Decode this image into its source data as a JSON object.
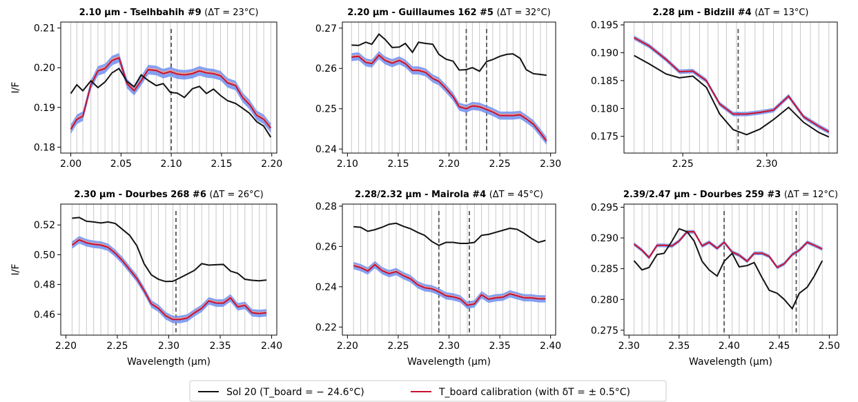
{
  "figure": {
    "xlabel": "Wavelength (µm)",
    "ylabel": "I/F",
    "legend": {
      "placement": "bottom-center",
      "entries": [
        {
          "label": "Sol 20 (T_board = − 24.6°C)",
          "color": "#111111"
        },
        {
          "label": "T_board calibration (with δT = ± 0.5°C)",
          "color": "#c8102e"
        }
      ]
    },
    "colors": {
      "sol": "#111111",
      "calib": "#c8102e",
      "band_low": "#6f8ff0",
      "band_high": "#f0a090",
      "grid": "#c8c8c8",
      "marker": "#555555"
    }
  },
  "chart_data": [
    {
      "type": "line",
      "title": "2.10 µm - Tselhbahih #9",
      "delta": "(ΔT = 23°C)",
      "xlim": [
        1.99,
        2.205
      ],
      "ylim": [
        0.1785,
        0.2115
      ],
      "xticks": [
        2.0,
        2.05,
        2.1,
        2.15,
        2.2
      ],
      "xtick_labels": [
        "2.00",
        "2.05",
        "2.10",
        "2.15",
        "2.20"
      ],
      "yticks": [
        0.18,
        0.19,
        0.2,
        0.21
      ],
      "ytick_labels": [
        "0.18",
        "0.19",
        "0.20",
        "0.21"
      ],
      "gridx": [
        2.0,
        2.006,
        2.012,
        2.02,
        2.027,
        2.034,
        2.041,
        2.048,
        2.056,
        2.063,
        2.07,
        2.077,
        2.085,
        2.092,
        2.099,
        2.106,
        2.113,
        2.121,
        2.128,
        2.135,
        2.142,
        2.149,
        2.156,
        2.164,
        2.171,
        2.178,
        2.185,
        2.192,
        2.199
      ],
      "markers": [
        2.1
      ],
      "show_xlabel": false,
      "show_ylabel": true,
      "x": [
        2.0,
        2.006,
        2.012,
        2.02,
        2.027,
        2.034,
        2.041,
        2.048,
        2.056,
        2.063,
        2.07,
        2.077,
        2.085,
        2.092,
        2.099,
        2.106,
        2.113,
        2.121,
        2.128,
        2.135,
        2.142,
        2.149,
        2.156,
        2.164,
        2.171,
        2.178,
        2.185,
        2.192,
        2.199
      ],
      "sol": [
        0.1935,
        0.1957,
        0.1942,
        0.1967,
        0.195,
        0.1964,
        0.1987,
        0.1998,
        0.1965,
        0.1952,
        0.1982,
        0.1968,
        0.1955,
        0.196,
        0.1938,
        0.1936,
        0.1925,
        0.1947,
        0.1953,
        0.1935,
        0.1946,
        0.193,
        0.1917,
        0.191,
        0.1898,
        0.1885,
        0.1864,
        0.1853,
        0.1825
      ],
      "calib": [
        0.1845,
        0.187,
        0.1878,
        0.1957,
        0.1992,
        0.1998,
        0.2018,
        0.2025,
        0.196,
        0.1942,
        0.1967,
        0.1995,
        0.1993,
        0.1985,
        0.199,
        0.1984,
        0.1982,
        0.1985,
        0.1992,
        0.1987,
        0.1985,
        0.198,
        0.1962,
        0.1955,
        0.1925,
        0.1907,
        0.188,
        0.187,
        0.1848
      ],
      "band": 0.0012
    },
    {
      "type": "line",
      "title": "2.20 µm - Guillaumes 162 #5",
      "delta": "(ΔT = 32°C)",
      "xlim": [
        2.095,
        2.305
      ],
      "ylim": [
        0.239,
        0.2715
      ],
      "xticks": [
        2.1,
        2.15,
        2.2,
        2.25,
        2.3
      ],
      "xtick_labels": [
        "2.10",
        "2.15",
        "2.20",
        "2.25",
        "2.30"
      ],
      "yticks": [
        0.24,
        0.25,
        0.26,
        0.27
      ],
      "ytick_labels": [
        "0.24",
        "0.25",
        "0.26",
        "0.27"
      ],
      "gridx": [
        2.104,
        2.111,
        2.118,
        2.124,
        2.131,
        2.137,
        2.144,
        2.151,
        2.157,
        2.164,
        2.17,
        2.177,
        2.184,
        2.19,
        2.197,
        2.204,
        2.21,
        2.217,
        2.223,
        2.23,
        2.237,
        2.243,
        2.25,
        2.257,
        2.263,
        2.27,
        2.276,
        2.283,
        2.29,
        2.296
      ],
      "markers": [
        2.217,
        2.237
      ],
      "show_xlabel": false,
      "show_ylabel": false,
      "x": [
        2.104,
        2.111,
        2.118,
        2.124,
        2.131,
        2.137,
        2.144,
        2.151,
        2.157,
        2.164,
        2.17,
        2.177,
        2.184,
        2.19,
        2.197,
        2.204,
        2.21,
        2.217,
        2.223,
        2.23,
        2.237,
        2.243,
        2.25,
        2.257,
        2.263,
        2.27,
        2.276,
        2.283,
        2.29,
        2.296
      ],
      "sol": [
        0.2658,
        0.2657,
        0.2665,
        0.266,
        0.2685,
        0.2672,
        0.2652,
        0.2653,
        0.2662,
        0.264,
        0.2665,
        0.2662,
        0.266,
        0.2635,
        0.2623,
        0.2618,
        0.2596,
        0.2597,
        0.2602,
        0.2593,
        0.2617,
        0.2622,
        0.263,
        0.2635,
        0.2636,
        0.2625,
        0.2597,
        0.2587,
        0.2585,
        0.2583
      ],
      "calib": [
        0.2628,
        0.263,
        0.2615,
        0.2612,
        0.2633,
        0.262,
        0.2613,
        0.262,
        0.2612,
        0.2595,
        0.2595,
        0.259,
        0.2575,
        0.2568,
        0.255,
        0.253,
        0.2505,
        0.25,
        0.2507,
        0.2505,
        0.2498,
        0.2492,
        0.2483,
        0.2483,
        0.2483,
        0.2485,
        0.2475,
        0.2462,
        0.244,
        0.242
      ],
      "band": 0.001
    },
    {
      "type": "line",
      "title": "2.28 µm - Bidziil #4",
      "delta": "(ΔT = 13°C)",
      "xlim": [
        2.215,
        2.342
      ],
      "ylim": [
        0.172,
        0.1955
      ],
      "xticks": [
        2.25,
        2.3
      ],
      "xtick_labels": [
        "2.25",
        "2.30"
      ],
      "yticks": [
        0.175,
        0.18,
        0.185,
        0.19,
        0.195
      ],
      "ytick_labels": [
        "0.175",
        "0.180",
        "0.185",
        "0.190",
        "0.195"
      ],
      "gridx": [
        2.221,
        2.227,
        2.232,
        2.238,
        2.243,
        2.249,
        2.254,
        2.26,
        2.265,
        2.271,
        2.276,
        2.282,
        2.287,
        2.293,
        2.298,
        2.304,
        2.309,
        2.315,
        2.32,
        2.326,
        2.331,
        2.337
      ],
      "markers": [
        2.283
      ],
      "show_xlabel": false,
      "show_ylabel": false,
      "x": [
        2.221,
        2.23,
        2.24,
        2.248,
        2.256,
        2.264,
        2.272,
        2.28,
        2.288,
        2.296,
        2.304,
        2.313,
        2.322,
        2.331,
        2.337
      ],
      "sol": [
        0.1895,
        0.188,
        0.1862,
        0.1855,
        0.1858,
        0.1838,
        0.179,
        0.1762,
        0.1753,
        0.1763,
        0.178,
        0.1802,
        0.1775,
        0.1757,
        0.1749
      ],
      "calib": [
        0.1927,
        0.1912,
        0.1888,
        0.1866,
        0.1867,
        0.185,
        0.1808,
        0.179,
        0.179,
        0.1793,
        0.1797,
        0.1822,
        0.1785,
        0.1768,
        0.1758
      ],
      "band": 0.0004
    },
    {
      "type": "line",
      "title": "2.30 µm - Dourbes 268 #6",
      "delta": "(ΔT = 26°C)",
      "xlim": [
        2.195,
        2.405
      ],
      "ylim": [
        0.446,
        0.534
      ],
      "xticks": [
        2.2,
        2.25,
        2.3,
        2.35,
        2.4
      ],
      "xtick_labels": [
        "2.20",
        "2.25",
        "2.30",
        "2.35",
        "2.40"
      ],
      "yticks": [
        0.46,
        0.48,
        0.5,
        0.52
      ],
      "ytick_labels": [
        "0.46",
        "0.48",
        "0.50",
        "0.52"
      ],
      "gridx": [
        2.206,
        2.213,
        2.22,
        2.227,
        2.234,
        2.241,
        2.248,
        2.255,
        2.262,
        2.269,
        2.276,
        2.283,
        2.29,
        2.297,
        2.304,
        2.311,
        2.318,
        2.325,
        2.332,
        2.339,
        2.346,
        2.353,
        2.36,
        2.367,
        2.374,
        2.381,
        2.388,
        2.395
      ],
      "markers": [
        2.307
      ],
      "show_xlabel": true,
      "show_ylabel": true,
      "x": [
        2.206,
        2.213,
        2.22,
        2.227,
        2.234,
        2.241,
        2.248,
        2.255,
        2.262,
        2.269,
        2.276,
        2.283,
        2.29,
        2.297,
        2.304,
        2.311,
        2.318,
        2.325,
        2.332,
        2.339,
        2.346,
        2.353,
        2.36,
        2.367,
        2.374,
        2.381,
        2.388,
        2.395
      ],
      "sol": [
        0.5245,
        0.525,
        0.5225,
        0.522,
        0.5213,
        0.522,
        0.521,
        0.517,
        0.513,
        0.506,
        0.494,
        0.4865,
        0.4835,
        0.482,
        0.4822,
        0.4845,
        0.487,
        0.4895,
        0.494,
        0.493,
        0.4933,
        0.4935,
        0.489,
        0.4875,
        0.4835,
        0.4828,
        0.4825,
        0.483
      ],
      "calib": [
        0.5065,
        0.51,
        0.508,
        0.507,
        0.5065,
        0.505,
        0.501,
        0.496,
        0.49,
        0.484,
        0.476,
        0.467,
        0.464,
        0.459,
        0.4565,
        0.4565,
        0.4575,
        0.461,
        0.464,
        0.469,
        0.4675,
        0.4675,
        0.471,
        0.465,
        0.466,
        0.461,
        0.4605,
        0.461
      ],
      "band": 0.0025
    },
    {
      "type": "line",
      "title": "2.28/2.32 µm - Mairola #4",
      "delta": "(ΔT = 45°C)",
      "xlim": [
        2.195,
        2.405
      ],
      "ylim": [
        0.216,
        0.281
      ],
      "xticks": [
        2.2,
        2.25,
        2.3,
        2.35,
        2.4
      ],
      "xtick_labels": [
        "2.20",
        "2.25",
        "2.30",
        "2.35",
        "2.40"
      ],
      "yticks": [
        0.22,
        0.24,
        0.26,
        0.28
      ],
      "ytick_labels": [
        "0.22",
        "0.24",
        "0.26",
        "0.28"
      ],
      "gridx": [
        2.206,
        2.213,
        2.22,
        2.227,
        2.234,
        2.241,
        2.248,
        2.255,
        2.262,
        2.269,
        2.276,
        2.283,
        2.29,
        2.297,
        2.304,
        2.311,
        2.318,
        2.325,
        2.332,
        2.339,
        2.346,
        2.353,
        2.36,
        2.367,
        2.374,
        2.381,
        2.388,
        2.395
      ],
      "markers": [
        2.29,
        2.32
      ],
      "show_xlabel": true,
      "show_ylabel": false,
      "x": [
        2.206,
        2.213,
        2.22,
        2.227,
        2.234,
        2.241,
        2.248,
        2.255,
        2.262,
        2.269,
        2.276,
        2.283,
        2.29,
        2.297,
        2.304,
        2.311,
        2.318,
        2.325,
        2.332,
        2.339,
        2.346,
        2.353,
        2.36,
        2.367,
        2.374,
        2.381,
        2.388,
        2.395
      ],
      "sol": [
        0.2698,
        0.2695,
        0.2675,
        0.2683,
        0.2695,
        0.271,
        0.2715,
        0.27,
        0.2688,
        0.267,
        0.2655,
        0.2625,
        0.2605,
        0.262,
        0.262,
        0.2615,
        0.2615,
        0.262,
        0.2655,
        0.266,
        0.267,
        0.268,
        0.269,
        0.2685,
        0.2665,
        0.264,
        0.262,
        0.263
      ],
      "calib": [
        0.2505,
        0.2495,
        0.2478,
        0.251,
        0.248,
        0.2465,
        0.2475,
        0.2455,
        0.244,
        0.241,
        0.2395,
        0.239,
        0.2375,
        0.2355,
        0.235,
        0.234,
        0.2308,
        0.2315,
        0.236,
        0.2338,
        0.2345,
        0.2348,
        0.2365,
        0.2355,
        0.2345,
        0.2345,
        0.234,
        0.234
      ],
      "band": 0.0018
    },
    {
      "type": "line",
      "title": "2.39/2.47 µm - Dourbes 259 #3",
      "delta": "(ΔT = 12°C)",
      "xlim": [
        2.295,
        2.508
      ],
      "ylim": [
        0.2742,
        0.2955
      ],
      "xticks": [
        2.3,
        2.35,
        2.4,
        2.45,
        2.5
      ],
      "xtick_labels": [
        "2.30",
        "2.35",
        "2.40",
        "2.45",
        "2.50"
      ],
      "yticks": [
        0.275,
        0.28,
        0.285,
        0.29,
        0.295
      ],
      "ytick_labels": [
        "0.275",
        "0.280",
        "0.285",
        "0.290",
        "0.295"
      ],
      "gridx": [
        2.305,
        2.313,
        2.32,
        2.328,
        2.335,
        2.343,
        2.35,
        2.358,
        2.365,
        2.373,
        2.38,
        2.388,
        2.395,
        2.403,
        2.41,
        2.418,
        2.425,
        2.433,
        2.44,
        2.448,
        2.455,
        2.463,
        2.47,
        2.478,
        2.485,
        2.493
      ],
      "markers": [
        2.395,
        2.467
      ],
      "show_xlabel": true,
      "show_ylabel": false,
      "x": [
        2.305,
        2.313,
        2.32,
        2.328,
        2.335,
        2.343,
        2.35,
        2.358,
        2.365,
        2.373,
        2.38,
        2.388,
        2.395,
        2.403,
        2.41,
        2.418,
        2.425,
        2.433,
        2.44,
        2.448,
        2.455,
        2.463,
        2.47,
        2.478,
        2.485,
        2.493
      ],
      "sol": [
        0.2863,
        0.2848,
        0.2852,
        0.2873,
        0.2875,
        0.2895,
        0.2915,
        0.291,
        0.2895,
        0.2862,
        0.2848,
        0.2838,
        0.2862,
        0.2875,
        0.2853,
        0.2855,
        0.286,
        0.2835,
        0.2815,
        0.281,
        0.28,
        0.2785,
        0.281,
        0.282,
        0.2838,
        0.2863
      ],
      "calib": [
        0.289,
        0.288,
        0.2868,
        0.2888,
        0.2888,
        0.2887,
        0.2895,
        0.291,
        0.291,
        0.2887,
        0.2893,
        0.2883,
        0.2893,
        0.2877,
        0.2872,
        0.2862,
        0.2875,
        0.2875,
        0.287,
        0.2852,
        0.2858,
        0.2873,
        0.288,
        0.2893,
        0.2888,
        0.2882
      ],
      "band": 0.0003
    }
  ]
}
